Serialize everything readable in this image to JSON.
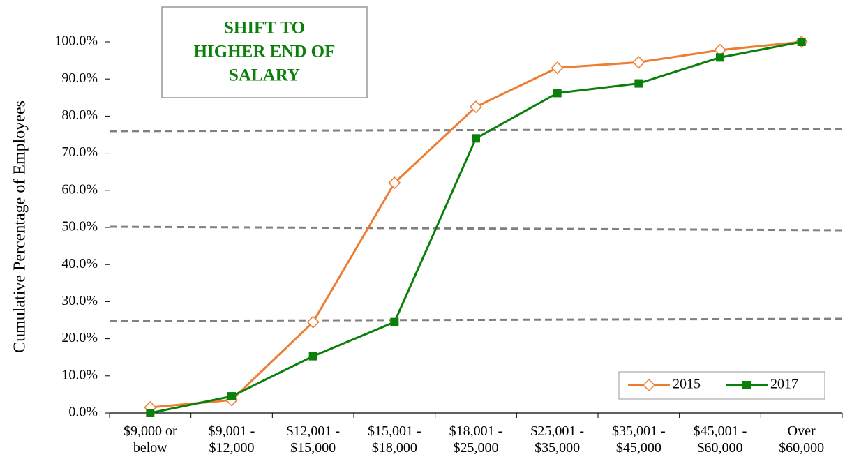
{
  "chart_data": {
    "type": "line",
    "y_label": "Cumulative Percentage of Employees",
    "annotation": [
      "SHIFT TO",
      "HIGHER END OF",
      "SALARY"
    ],
    "categories": [
      "$9,000 or below",
      "$9,001 - $12,000",
      "$12,001 - $15,000",
      "$15,001 - $18,000",
      "$18,001 - $25,000",
      "$25,001 - $35,000",
      "$35,001 - $45,000",
      "$45,001 - $60,000",
      "Over $60,000"
    ],
    "series": [
      {
        "name": "2015",
        "color": "#ed7d31",
        "marker": "diamond-open",
        "values": [
          1.5,
          3.5,
          24.5,
          62,
          82.5,
          93,
          94.5,
          97.8,
          100
        ]
      },
      {
        "name": "2017",
        "color": "#0a800a",
        "marker": "square",
        "values": [
          0,
          4.5,
          15.3,
          24.5,
          74,
          86.2,
          88.8,
          95.8,
          100
        ]
      }
    ],
    "ylim": [
      0,
      100
    ],
    "yticks": [
      {
        "value": 0,
        "label": "0.0%"
      },
      {
        "value": 10,
        "label": "10.0%"
      },
      {
        "value": 20,
        "label": "20.0%"
      },
      {
        "value": 30,
        "label": "30.0%"
      },
      {
        "value": 40,
        "label": "40.0%"
      },
      {
        "value": 50,
        "label": "50.0%"
      },
      {
        "value": 60,
        "label": "60.0%"
      },
      {
        "value": 70,
        "label": "70.0%"
      },
      {
        "value": 80,
        "label": "80.0%"
      },
      {
        "value": 90,
        "label": "90.0%"
      },
      {
        "value": 100,
        "label": "100.0%"
      }
    ],
    "legend": "bottom-right"
  }
}
